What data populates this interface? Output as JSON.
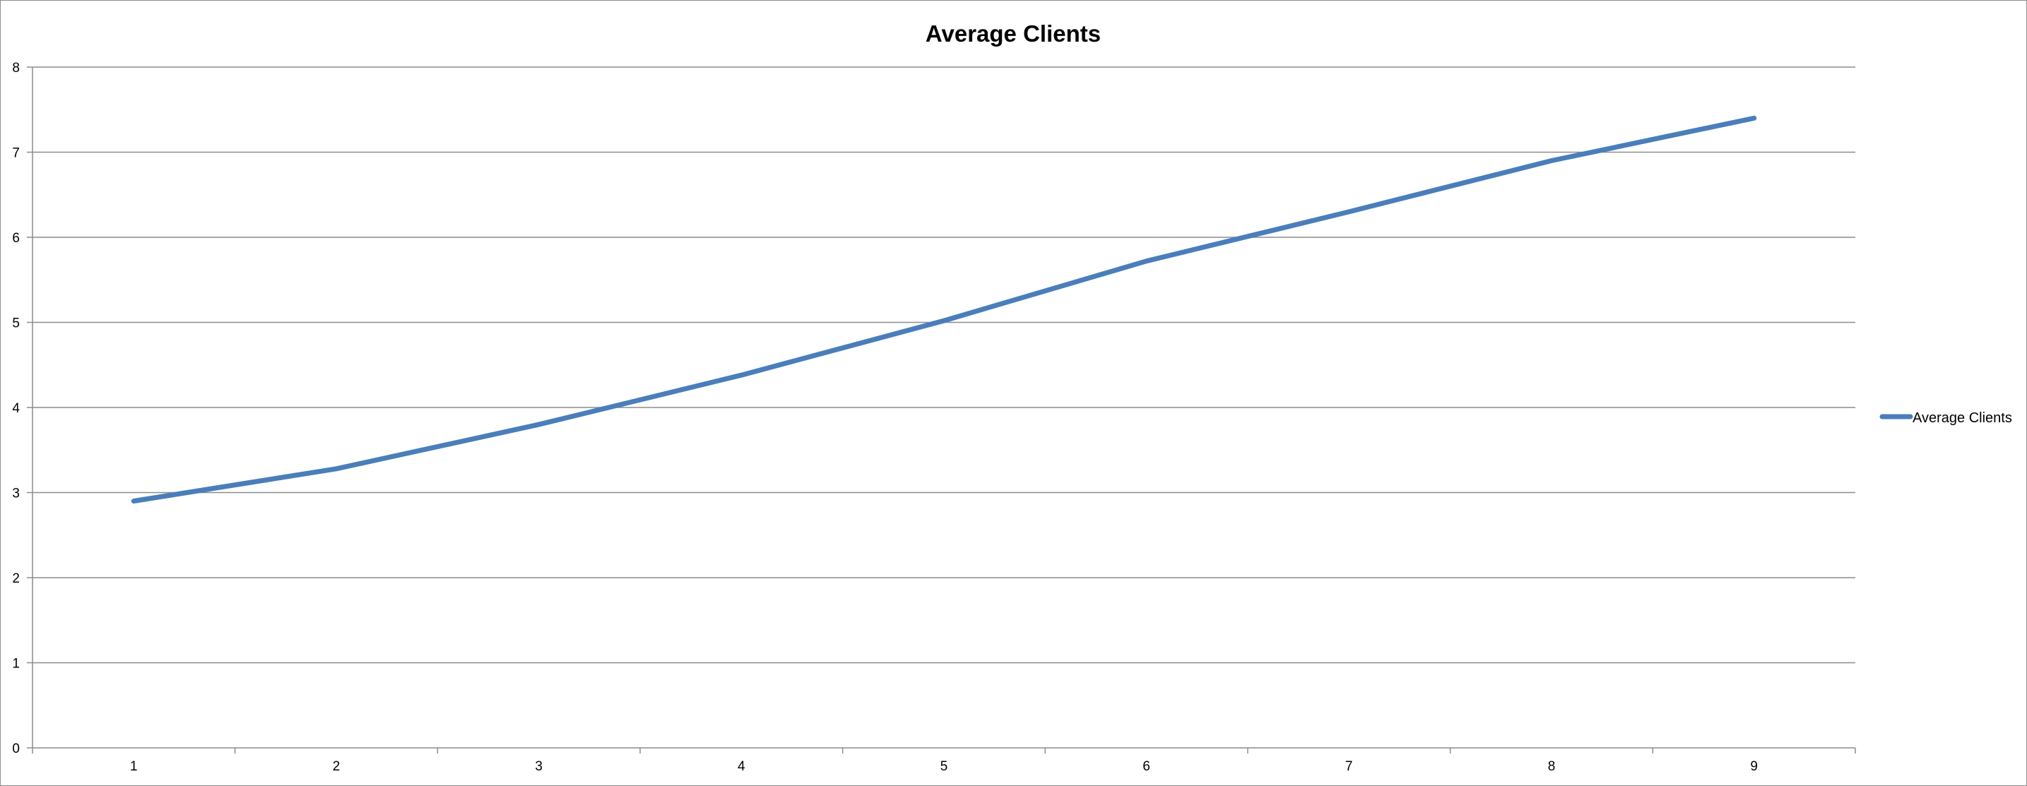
{
  "chart_data": {
    "type": "line",
    "title": "Average Clients",
    "xlabel": "",
    "ylabel": "",
    "categories": [
      "1",
      "2",
      "3",
      "4",
      "5",
      "6",
      "7",
      "8",
      "9"
    ],
    "series": [
      {
        "name": "Average Clients",
        "values": [
          2.9,
          3.28,
          3.8,
          4.38,
          5.02,
          5.72,
          6.3,
          6.9,
          7.4
        ],
        "color": "#4A7EBB"
      }
    ],
    "ylim": [
      0,
      8
    ],
    "yticks": [
      0,
      1,
      2,
      3,
      4,
      5,
      6,
      7,
      8
    ],
    "grid": true,
    "legend_position": "right"
  },
  "colors": {
    "gridline": "#8c8c8c",
    "axis": "#8c8c8c",
    "frame": "#8c8c8c"
  }
}
